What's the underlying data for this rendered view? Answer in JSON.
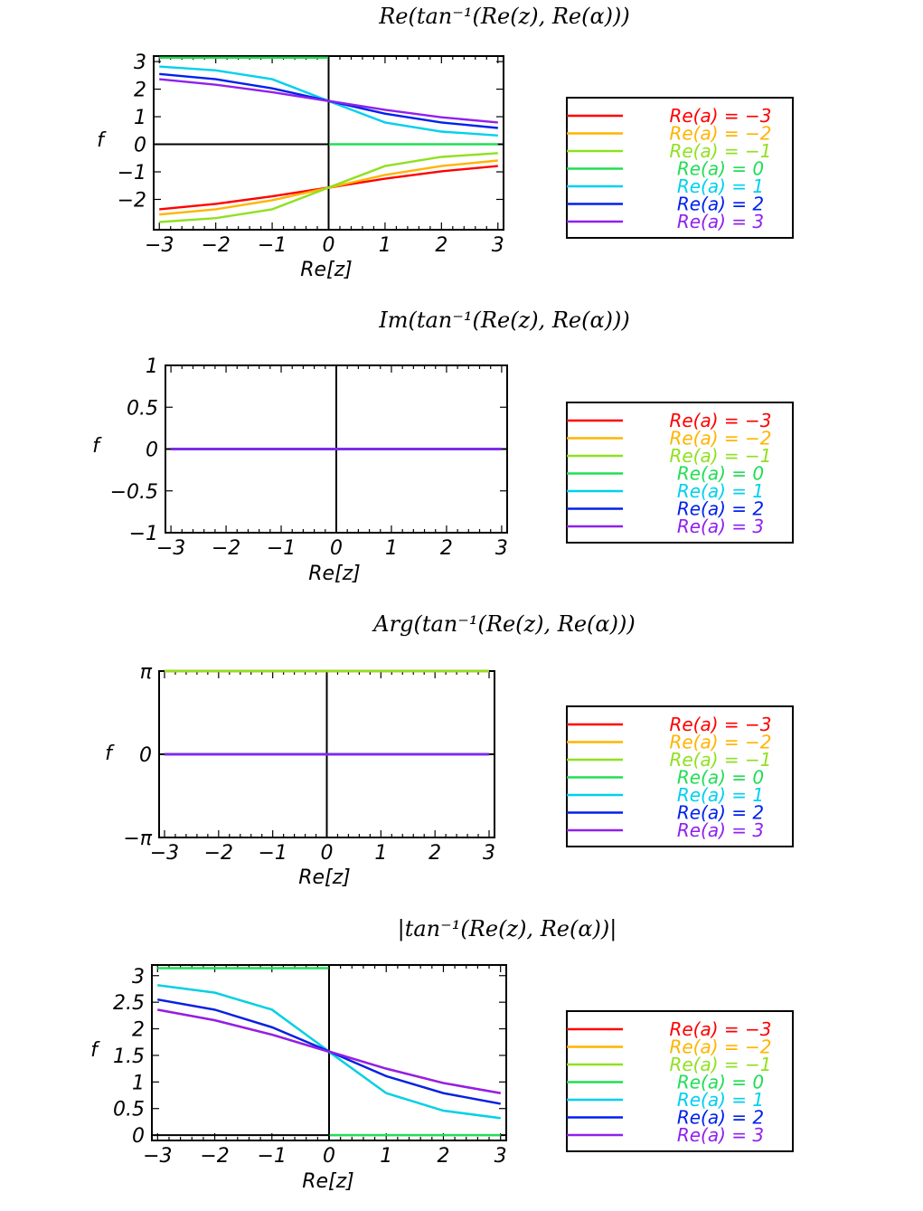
{
  "legend_entries": [
    {
      "label": "Re(a) = −3",
      "color": "#ff0000"
    },
    {
      "label": "Re(a) = −2",
      "color": "#ffb400"
    },
    {
      "label": "Re(a) = −1",
      "color": "#90e020"
    },
    {
      "label": "Re(a) = 0",
      "color": "#22dd55"
    },
    {
      "label": "Re(a) = 1",
      "color": "#00d0ee"
    },
    {
      "label": "Re(a) = 2",
      "color": "#0020ee"
    },
    {
      "label": "Re(a) = 3",
      "color": "#9020ee"
    }
  ],
  "chart_data": [
    {
      "type": "line",
      "title": "Re(tan⁻¹(Re(z), Re(α)))",
      "xlabel": "Re[z]",
      "ylabel": "f",
      "xlim": [
        -3.1,
        3.1
      ],
      "ylim": [
        -3.1,
        3.2
      ],
      "xticks": [
        -3,
        -2,
        -1,
        0,
        1,
        2,
        3
      ],
      "xtick_labels": [
        "−3",
        "−2",
        "−1",
        "0",
        "1",
        "2",
        "3"
      ],
      "yticks": [
        -2,
        -1,
        0,
        1,
        2,
        3
      ],
      "ytick_labels": [
        "−2",
        "−1",
        "0",
        "1",
        "2",
        "3"
      ],
      "grid": false,
      "legend": "right",
      "x": [
        -3,
        -2,
        -1,
        -0.01,
        0.01,
        1,
        2,
        3
      ],
      "series": [
        {
          "name": "Re(a) = −3",
          "color": "#ff0000",
          "values": [
            -2.36,
            -2.16,
            -1.89,
            -1.57,
            -1.57,
            -1.25,
            -0.98,
            -0.79
          ]
        },
        {
          "name": "Re(a) = −2",
          "color": "#ffb400",
          "values": [
            -2.55,
            -2.36,
            -2.03,
            -1.58,
            -1.57,
            -1.11,
            -0.79,
            -0.59
          ]
        },
        {
          "name": "Re(a) = −1",
          "color": "#90e020",
          "values": [
            -2.82,
            -2.68,
            -2.36,
            -1.58,
            -1.56,
            -0.79,
            -0.46,
            -0.32
          ]
        },
        {
          "name": "Re(a) = 0",
          "color": "#22dd55",
          "values": [
            3.14,
            3.14,
            3.14,
            3.14,
            0,
            0,
            0,
            0
          ]
        },
        {
          "name": "Re(a) = 1",
          "color": "#00d0ee",
          "values": [
            2.82,
            2.68,
            2.36,
            1.58,
            1.56,
            0.79,
            0.46,
            0.32
          ]
        },
        {
          "name": "Re(a) = 2",
          "color": "#0020ee",
          "values": [
            2.55,
            2.36,
            2.03,
            1.58,
            1.57,
            1.11,
            0.79,
            0.59
          ]
        },
        {
          "name": "Re(a) = 3",
          "color": "#9020ee",
          "values": [
            2.36,
            2.16,
            1.89,
            1.57,
            1.57,
            1.25,
            0.98,
            0.79
          ]
        }
      ]
    },
    {
      "type": "line",
      "title": "Im(tan⁻¹(Re(z), Re(α)))",
      "xlabel": "Re[z]",
      "ylabel": "f",
      "xlim": [
        -3.1,
        3.1
      ],
      "ylim": [
        -1,
        1
      ],
      "xticks": [
        -3,
        -2,
        -1,
        0,
        1,
        2,
        3
      ],
      "xtick_labels": [
        "−3",
        "−2",
        "−1",
        "0",
        "1",
        "2",
        "3"
      ],
      "yticks": [
        -1,
        -0.5,
        0,
        0.5,
        1
      ],
      "ytick_labels": [
        "−1",
        "−0.5",
        "0",
        "0.5",
        "1"
      ],
      "grid": false,
      "legend": "right",
      "x": [
        -3,
        3
      ],
      "series": [
        {
          "name": "Re(a) = −3",
          "color": "#ff0000",
          "values": [
            0,
            0
          ]
        },
        {
          "name": "Re(a) = −2",
          "color": "#ffb400",
          "values": [
            0,
            0
          ]
        },
        {
          "name": "Re(a) = −1",
          "color": "#90e020",
          "values": [
            0,
            0
          ]
        },
        {
          "name": "Re(a) = 0",
          "color": "#22dd55",
          "values": [
            0,
            0
          ]
        },
        {
          "name": "Re(a) = 1",
          "color": "#00d0ee",
          "values": [
            0,
            0
          ]
        },
        {
          "name": "Re(a) = 2",
          "color": "#0020ee",
          "values": [
            0,
            0
          ]
        },
        {
          "name": "Re(a) = 3",
          "color": "#9020ee",
          "values": [
            0,
            0
          ]
        }
      ]
    },
    {
      "type": "line",
      "title": "Arg(tan⁻¹(Re(z), Re(α)))",
      "xlabel": "Re[z]",
      "ylabel": "f",
      "xlim": [
        -3.1,
        3.1
      ],
      "ylim": [
        -3.1416,
        3.1416
      ],
      "xticks": [
        -3,
        -2,
        -1,
        0,
        1,
        2,
        3
      ],
      "xtick_labels": [
        "−3",
        "−2",
        "−1",
        "0",
        "1",
        "2",
        "3"
      ],
      "yticks": [
        -3.1416,
        0,
        3.1416
      ],
      "ytick_labels": [
        "−π",
        "0",
        "π"
      ],
      "grid": false,
      "legend": "right",
      "x": [
        -3,
        3
      ],
      "series": [
        {
          "name": "Re(a) = −3",
          "color": "#ff0000",
          "values": [
            3.1416,
            3.1416
          ]
        },
        {
          "name": "Re(a) = −2",
          "color": "#ffb400",
          "values": [
            3.1416,
            3.1416
          ]
        },
        {
          "name": "Re(a) = −1",
          "color": "#90e020",
          "values": [
            3.1416,
            3.1416
          ]
        },
        {
          "name": "Re(a) = 0",
          "color": "#22dd55",
          "values": [
            0,
            0
          ]
        },
        {
          "name": "Re(a) = 1",
          "color": "#00d0ee",
          "values": [
            0,
            0
          ]
        },
        {
          "name": "Re(a) = 2",
          "color": "#0020ee",
          "values": [
            0,
            0
          ]
        },
        {
          "name": "Re(a) = 3",
          "color": "#9020ee",
          "values": [
            0,
            0
          ]
        }
      ]
    },
    {
      "type": "line",
      "title": "|tan⁻¹(Re(z), Re(α))|",
      "xlabel": "Re[z]",
      "ylabel": "f",
      "xlim": [
        -3.1,
        3.1
      ],
      "ylim": [
        -0.1,
        3.2
      ],
      "xticks": [
        -3,
        -2,
        -1,
        0,
        1,
        2,
        3
      ],
      "xtick_labels": [
        "−3",
        "−2",
        "−1",
        "0",
        "1",
        "2",
        "3"
      ],
      "yticks": [
        0,
        0.5,
        1,
        1.5,
        2,
        2.5,
        3
      ],
      "ytick_labels": [
        "0",
        "0.5",
        "1",
        "1.5",
        "2",
        "2.5",
        "3"
      ],
      "grid": false,
      "legend": "right",
      "x": [
        -3,
        -2,
        -1,
        -0.01,
        0.01,
        1,
        2,
        3
      ],
      "series": [
        {
          "name": "Re(a) = −3",
          "color": "#ff0000",
          "values": [
            2.36,
            2.16,
            1.89,
            1.57,
            1.57,
            1.25,
            0.98,
            0.79
          ]
        },
        {
          "name": "Re(a) = −2",
          "color": "#ffb400",
          "values": [
            2.55,
            2.36,
            2.03,
            1.58,
            1.57,
            1.11,
            0.79,
            0.59
          ]
        },
        {
          "name": "Re(a) = −1",
          "color": "#90e020",
          "values": [
            2.82,
            2.68,
            2.36,
            1.58,
            1.56,
            0.79,
            0.46,
            0.32
          ]
        },
        {
          "name": "Re(a) = 0",
          "color": "#22dd55",
          "values": [
            3.14,
            3.14,
            3.14,
            3.14,
            0,
            0,
            0,
            0
          ]
        },
        {
          "name": "Re(a) = 1",
          "color": "#00d0ee",
          "values": [
            2.82,
            2.68,
            2.36,
            1.58,
            1.56,
            0.79,
            0.46,
            0.32
          ]
        },
        {
          "name": "Re(a) = 2",
          "color": "#0020ee",
          "values": [
            2.55,
            2.36,
            2.03,
            1.58,
            1.57,
            1.11,
            0.79,
            0.59
          ]
        },
        {
          "name": "Re(a) = 3",
          "color": "#9020ee",
          "values": [
            2.36,
            2.16,
            1.89,
            1.57,
            1.57,
            1.25,
            0.98,
            0.79
          ]
        }
      ]
    }
  ]
}
